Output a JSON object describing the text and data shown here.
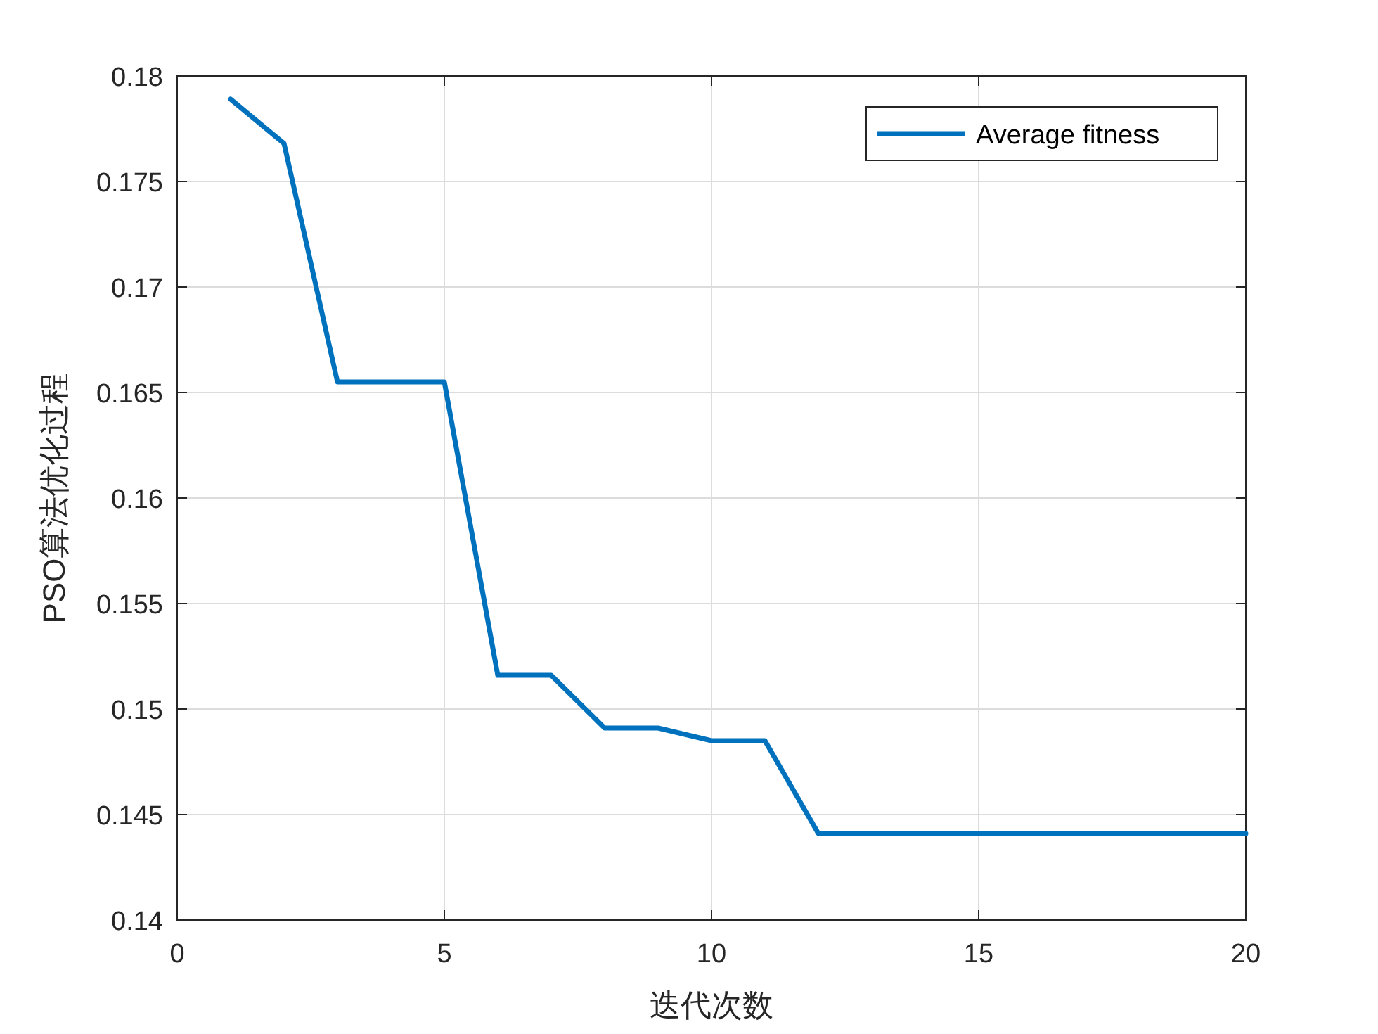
{
  "chart_data": {
    "type": "line",
    "xlabel": "迭代次数",
    "ylabel": "PSO算法优化过程",
    "x": [
      1,
      2,
      3,
      4,
      5,
      6,
      7,
      8,
      9,
      10,
      11,
      12,
      13,
      14,
      15,
      16,
      17,
      18,
      19,
      20
    ],
    "series": [
      {
        "name": "Average fitness",
        "color": "#0072bd",
        "values": [
          0.1789,
          0.1768,
          0.1655,
          0.1655,
          0.1655,
          0.1516,
          0.1516,
          0.1491,
          0.1491,
          0.1485,
          0.1485,
          0.1441,
          0.1441,
          0.1441,
          0.1441,
          0.1441,
          0.1441,
          0.1441,
          0.1441,
          0.1441
        ]
      }
    ],
    "xlim": [
      0,
      20
    ],
    "xticks": [
      0,
      5,
      10,
      15,
      20
    ],
    "ylim": [
      0.14,
      0.18
    ],
    "yticks": [
      0.14,
      0.145,
      0.15,
      0.155,
      0.16,
      0.165,
      0.17,
      0.175,
      0.18
    ],
    "grid": true,
    "legend": "top right",
    "marker": "none",
    "line_style": "solid"
  }
}
